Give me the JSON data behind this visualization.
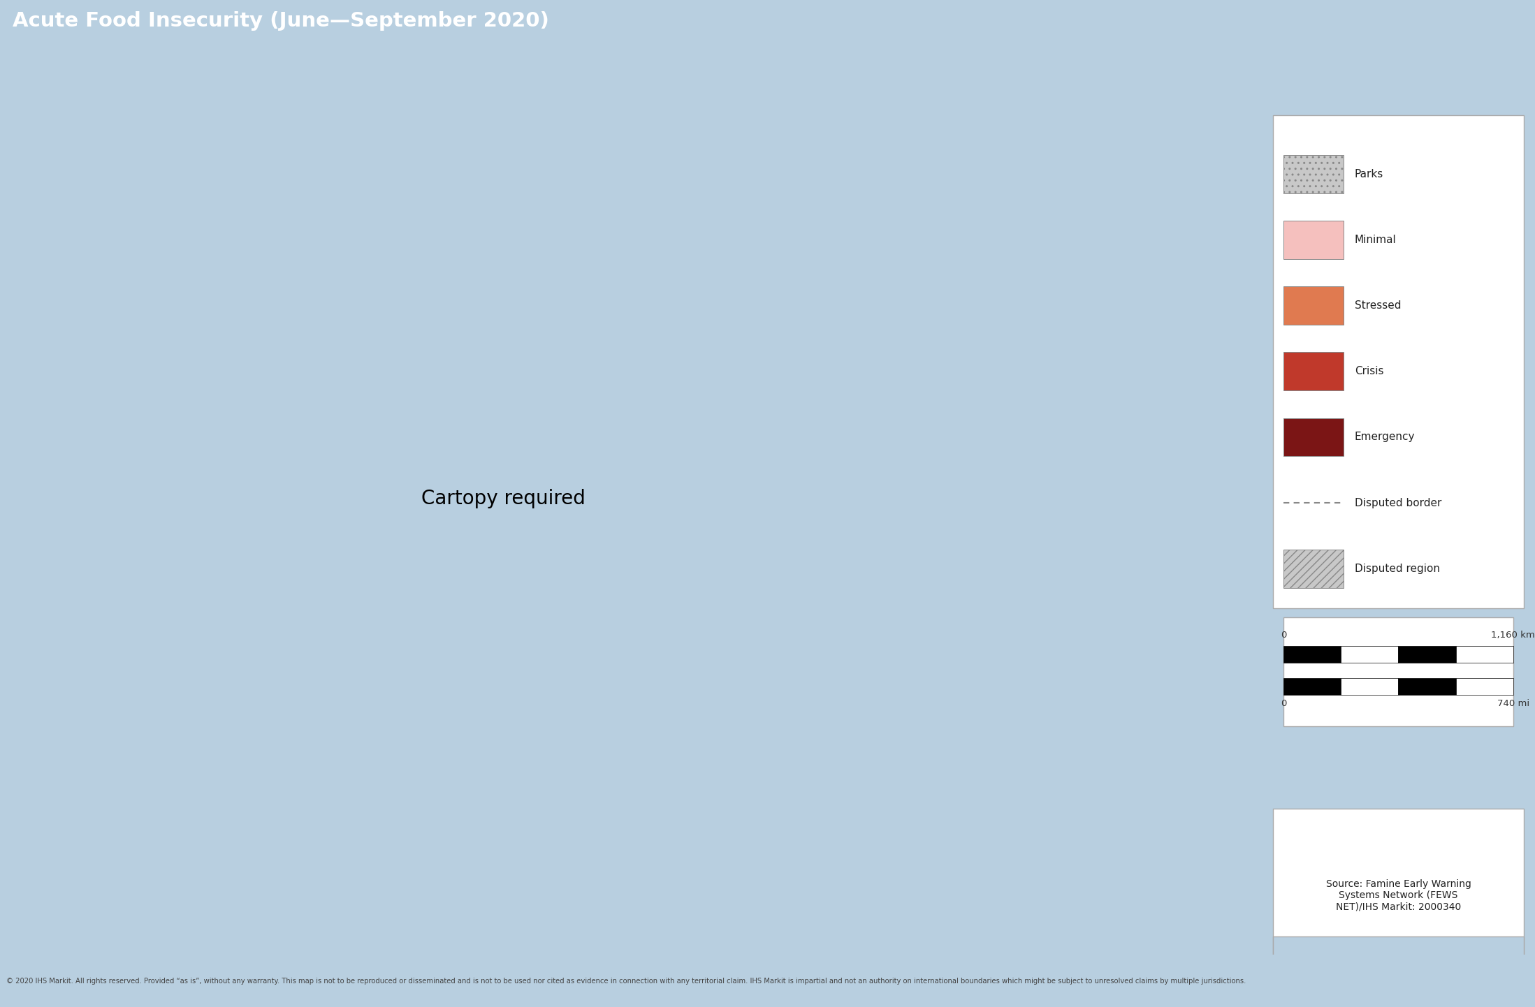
{
  "title": "Acute Food Insecurity (June—September 2020)",
  "title_bg_color": "#808080",
  "title_text_color": "#ffffff",
  "ocean_color": "#b8cfe0",
  "land_color": "#f0ece4",
  "border_color": "#888888",
  "source_text": "Source: Famine Early Warning\nSystems Network (FEWS\nNET)/IHS Markit: 2000340",
  "footer_text": "© 2020 IHS Markit. All rights reserved. Provided “as is”, without any warranty. This map is not to be reproduced or disseminated and is not to be used nor cited as evidence in connection with any territorial claim. IHS Markit is impartial and not an authority on international boundaries which might be subject to unresolved claims by multiple jurisdictions.",
  "colors": {
    "minimal": "#f5c0be",
    "stressed": "#e07a50",
    "crisis": "#c0392b",
    "emergency": "#7b1515",
    "land_white": "#f5f5f0",
    "land_light": "#ede9e0"
  },
  "legend_items": [
    {
      "label": "Parks",
      "color": "#c8c8c8",
      "hatch": ".."
    },
    {
      "label": "Minimal",
      "color": "#f5c0be",
      "hatch": null
    },
    {
      "label": "Stressed",
      "color": "#e07a50",
      "hatch": null
    },
    {
      "label": "Crisis",
      "color": "#c0392b",
      "hatch": null
    },
    {
      "label": "Emergency",
      "color": "#7b1515",
      "hatch": null
    },
    {
      "label": "Disputed border",
      "color": "#888888",
      "hatch": "line"
    },
    {
      "label": "Disputed region",
      "color": "#c8c8c8",
      "hatch": "///"
    }
  ],
  "figsize": [
    21.97,
    14.42
  ],
  "dpi": 100
}
